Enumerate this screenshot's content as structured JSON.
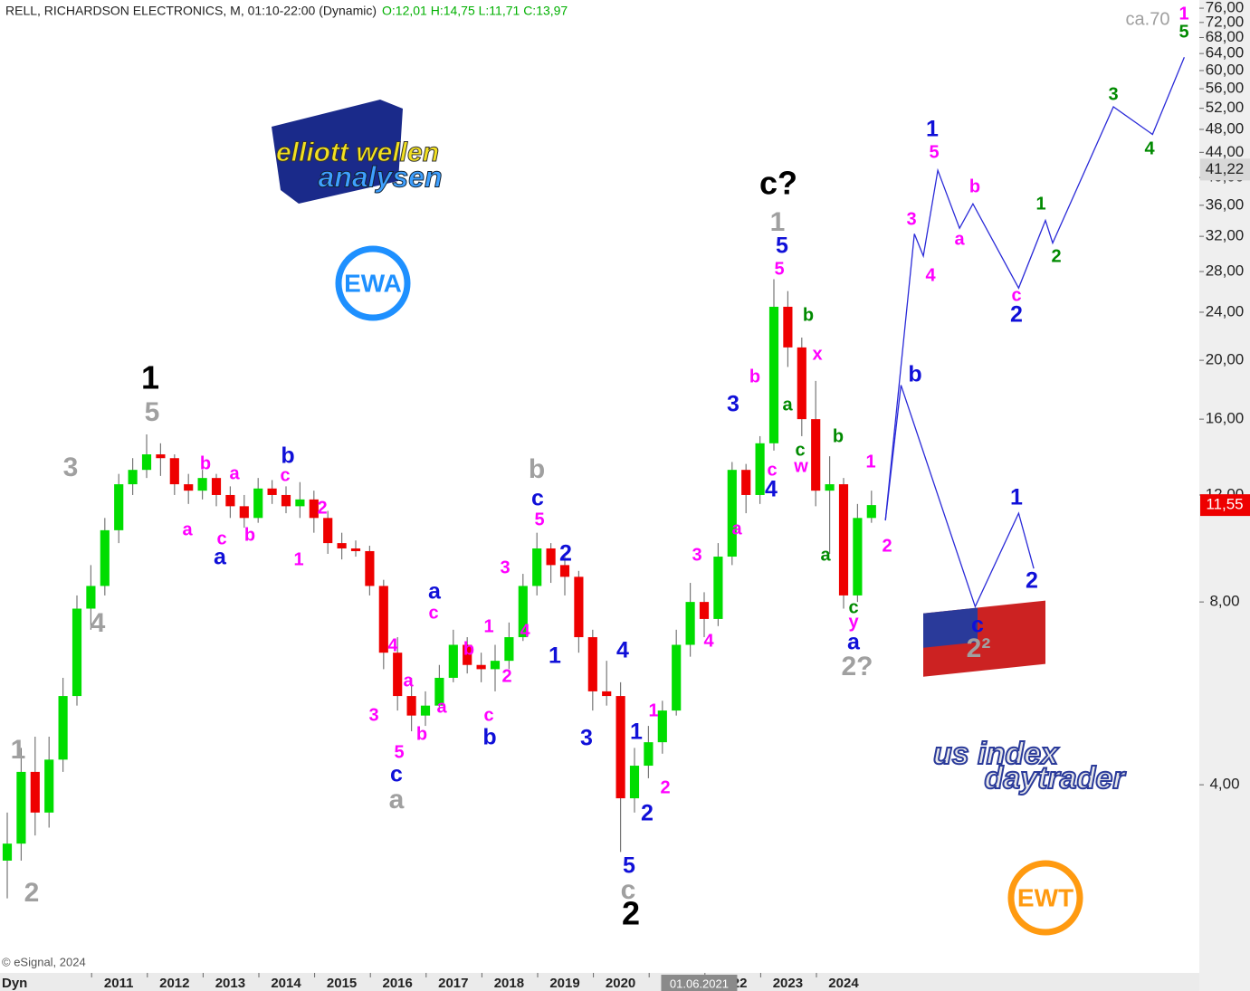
{
  "chart_data": {
    "type": "candlestick",
    "title": "RELL, RICHARDSON ELECTRONICS, M, 01:10-22:00 (Dynamic)",
    "ohlc_text": "O:12,01 H:14,75 L:11,71 C:13,97",
    "copyright": "© eSignal, 2024",
    "status": "Dyn",
    "target_text": "ca.70",
    "yscale": "log",
    "grid": false,
    "xlim": [
      2008.87,
      2030.38
    ],
    "ylim": [
      1.96,
      78.4
    ],
    "xticks": [
      2011,
      2012,
      2013,
      2014,
      2015,
      2016,
      2017,
      2018,
      2019,
      2020,
      2021,
      2022,
      2023,
      2024
    ],
    "yticks": [
      {
        "value": 4,
        "label": "4,00"
      },
      {
        "value": 8,
        "label": "8,00"
      },
      {
        "value": 12,
        "label": "12,00"
      },
      {
        "value": 16,
        "label": "16,00"
      },
      {
        "value": 20,
        "label": "20,00"
      },
      {
        "value": 24,
        "label": "24,00"
      },
      {
        "value": 28,
        "label": "28,00"
      },
      {
        "value": 32,
        "label": "32,00"
      },
      {
        "value": 36,
        "label": "36,00"
      },
      {
        "value": 40,
        "label": "40,00"
      },
      {
        "value": 44,
        "label": "44,00"
      },
      {
        "value": 48,
        "label": "48,00"
      },
      {
        "value": 52,
        "label": "52,00"
      },
      {
        "value": 56,
        "label": "56,00"
      },
      {
        "value": 60,
        "label": "60,00"
      },
      {
        "value": 64,
        "label": "64,00"
      },
      {
        "value": 68,
        "label": "68,00"
      },
      {
        "value": 72,
        "label": "72,00"
      },
      {
        "value": 76,
        "label": "76,00"
      }
    ],
    "cursor": {
      "value": 2021.41,
      "label": "01.06.2021"
    },
    "price_labels": [
      {
        "value": 41.22,
        "label": "41,22",
        "color": "#d8d8d8"
      },
      {
        "value": 11.55,
        "label": "11,55",
        "color": "#ee0000"
      }
    ],
    "up_color": "#00dd00",
    "down_color": "#ee0000",
    "x": [
      2009,
      2009.25,
      2009.5,
      2009.75,
      2010,
      2010.25,
      2010.5,
      2010.75,
      2011,
      2011.25,
      2011.5,
      2011.75,
      2012,
      2012.25,
      2012.5,
      2012.75,
      2013,
      2013.25,
      2013.5,
      2013.75,
      2014,
      2014.25,
      2014.5,
      2014.75,
      2015,
      2015.25,
      2015.5,
      2015.75,
      2016,
      2016.25,
      2016.5,
      2016.75,
      2017,
      2017.25,
      2017.5,
      2017.75,
      2018,
      2018.25,
      2018.5,
      2018.75,
      2019,
      2019.25,
      2019.5,
      2019.75,
      2020,
      2020.25,
      2020.5,
      2020.75,
      2021,
      2021.25,
      2021.5,
      2021.75,
      2022,
      2022.25,
      2022.5,
      2022.75,
      2023,
      2023.25,
      2023.5,
      2023.75,
      2024,
      2024.25,
      2024.5
    ],
    "open": [
      3.0,
      3.2,
      4.2,
      3.6,
      4.4,
      5.6,
      7.8,
      8.5,
      10.5,
      12.5,
      13.2,
      14.0,
      13.8,
      12.5,
      12.2,
      12.8,
      12.0,
      11.5,
      11.0,
      12.3,
      12.0,
      11.5,
      11.8,
      11.0,
      10.0,
      9.8,
      9.7,
      8.5,
      6.6,
      5.6,
      5.2,
      5.4,
      6.0,
      6.8,
      6.3,
      6.2,
      6.4,
      7.0,
      8.5,
      9.8,
      9.2,
      8.8,
      7.0,
      5.7,
      5.6,
      3.8,
      4.3,
      4.7,
      5.3,
      6.8,
      8.0,
      7.5,
      9.5,
      13.2,
      12.0,
      14.6,
      24.5,
      21.0,
      16.0,
      12.2,
      12.5,
      8.2,
      11.0
    ],
    "high": [
      3.6,
      4.6,
      4.8,
      4.8,
      6.0,
      8.2,
      9.2,
      11.0,
      13.0,
      13.8,
      15.1,
      14.6,
      14.0,
      13.0,
      13.2,
      13.0,
      12.4,
      12.0,
      12.8,
      12.7,
      12.4,
      12.6,
      12.2,
      11.3,
      10.4,
      10.1,
      9.9,
      8.7,
      7.0,
      6.0,
      5.7,
      6.3,
      7.2,
      7.0,
      6.6,
      6.8,
      7.4,
      8.9,
      10.4,
      10.0,
      9.5,
      9.0,
      7.2,
      6.4,
      5.9,
      4.6,
      5.0,
      5.5,
      7.2,
      8.6,
      8.3,
      10.0,
      13.6,
      13.5,
      15.0,
      27.2,
      26.0,
      21.8,
      18.5,
      13.9,
      12.8,
      11.6,
      12.2
    ],
    "low": [
      2.6,
      3.0,
      3.3,
      3.4,
      4.2,
      5.4,
      7.2,
      8.2,
      10.0,
      12.0,
      12.8,
      12.9,
      12.0,
      11.6,
      11.8,
      11.5,
      11.0,
      10.6,
      10.8,
      11.6,
      11.2,
      11.0,
      10.4,
      9.6,
      9.4,
      9.5,
      8.2,
      6.2,
      5.3,
      4.9,
      5.0,
      5.3,
      5.9,
      6.1,
      5.9,
      5.7,
      6.2,
      6.9,
      8.2,
      8.6,
      8.2,
      6.6,
      5.3,
      5.4,
      3.1,
      3.6,
      4.1,
      4.5,
      5.2,
      6.5,
      7.0,
      7.3,
      9.2,
      11.2,
      11.6,
      14.2,
      19.5,
      15.0,
      11.5,
      9.6,
      7.8,
      8.0,
      10.8
    ],
    "close": [
      3.2,
      4.2,
      3.6,
      4.4,
      5.6,
      7.8,
      8.5,
      10.5,
      12.5,
      13.2,
      14.0,
      13.8,
      12.5,
      12.2,
      12.8,
      12.0,
      11.5,
      11.0,
      12.3,
      12.0,
      11.5,
      11.8,
      11.0,
      10.0,
      9.8,
      9.7,
      8.5,
      6.6,
      5.6,
      5.2,
      5.4,
      6.0,
      6.8,
      6.3,
      6.2,
      6.4,
      7.0,
      8.5,
      9.8,
      9.2,
      8.8,
      7.0,
      5.7,
      5.6,
      3.8,
      4.3,
      4.7,
      5.3,
      6.8,
      8.0,
      7.5,
      9.5,
      13.2,
      12.0,
      14.6,
      24.5,
      21.0,
      16.0,
      12.2,
      12.5,
      8.2,
      11.0,
      11.55
    ],
    "projections": [
      {
        "color": "#2a2ad8",
        "x": [
          2024.75,
          2025.27,
          2025.43,
          2025.69,
          2026.08,
          2026.32,
          2027.14,
          2027.62,
          2027.75,
          2028.84,
          2029.54,
          2030.11
        ],
        "values": [
          10.9,
          32.3,
          29.7,
          41.1,
          33.0,
          36.2,
          26.3,
          34.0,
          31.2,
          52.3,
          47.1,
          63.1
        ]
      },
      {
        "color": "#2a2ad8",
        "x": [
          2024.75,
          2025.03,
          2026.36,
          2027.14,
          2027.41
        ],
        "values": [
          10.9,
          18.2,
          7.86,
          11.2,
          9.08
        ]
      }
    ],
    "annotations": [
      {
        "text": "1",
        "color": "#000000"
      },
      {
        "text": "c?",
        "color": "#000000"
      },
      {
        "text": "2",
        "color": "#000000"
      },
      {
        "text": "5",
        "color": "#a0a0a0"
      },
      {
        "text": "3",
        "color": "#a0a0a0"
      },
      {
        "text": "4",
        "color": "#a0a0a0"
      },
      {
        "text": "1",
        "color": "#a0a0a0"
      },
      {
        "text": "2",
        "color": "#a0a0a0"
      },
      {
        "text": "b",
        "color": "#a0a0a0"
      },
      {
        "text": "a",
        "color": "#a0a0a0"
      },
      {
        "text": "c",
        "color": "#a0a0a0"
      },
      {
        "text": "1",
        "color": "#a0a0a0"
      },
      {
        "text": "2?",
        "color": "#a0a0a0"
      },
      {
        "text": "2²",
        "color": "#a0a0a0"
      },
      {
        "text": "b",
        "color": "#1010d8"
      },
      {
        "text": "a",
        "color": "#1010d8"
      },
      {
        "text": "c",
        "color": "#1010d8"
      },
      {
        "text": "2",
        "color": "#1010d8"
      },
      {
        "text": "1",
        "color": "#1010d8"
      },
      {
        "text": "4",
        "color": "#1010d8"
      },
      {
        "text": "3",
        "color": "#1010d8"
      },
      {
        "text": "1",
        "color": "#1010d8"
      },
      {
        "text": "2",
        "color": "#1010d8"
      },
      {
        "text": "5",
        "color": "#1010d8"
      },
      {
        "text": "a",
        "color": "#1010d8"
      },
      {
        "text": "b",
        "color": "#1010d8"
      },
      {
        "text": "c",
        "color": "#1010d8"
      },
      {
        "text": "3",
        "color": "#1010d8"
      },
      {
        "text": "4",
        "color": "#1010d8"
      },
      {
        "text": "5",
        "color": "#1010d8"
      },
      {
        "text": "a",
        "color": "#1010d8"
      },
      {
        "text": "1",
        "color": "#1010d8"
      },
      {
        "text": "b",
        "color": "#1010d8"
      },
      {
        "text": "2",
        "color": "#1010d8"
      },
      {
        "text": "c",
        "color": "#1010d8"
      },
      {
        "text": "1",
        "color": "#1010d8"
      },
      {
        "text": "2",
        "color": "#1010d8"
      },
      {
        "text": "b",
        "color": "#ff00ff"
      },
      {
        "text": "a",
        "color": "#ff00ff"
      },
      {
        "text": "c",
        "color": "#ff00ff"
      },
      {
        "text": "a",
        "color": "#ff00ff"
      },
      {
        "text": "c",
        "color": "#ff00ff"
      },
      {
        "text": "b",
        "color": "#ff00ff"
      },
      {
        "text": "2",
        "color": "#ff00ff"
      },
      {
        "text": "1",
        "color": "#ff00ff"
      },
      {
        "text": "5",
        "color": "#ff00ff"
      },
      {
        "text": "3",
        "color": "#ff00ff"
      },
      {
        "text": "4",
        "color": "#ff00ff"
      },
      {
        "text": "1",
        "color": "#ff00ff"
      },
      {
        "text": "2",
        "color": "#ff00ff"
      },
      {
        "text": "4",
        "color": "#ff00ff"
      },
      {
        "text": "a",
        "color": "#ff00ff"
      },
      {
        "text": "3",
        "color": "#ff00ff"
      },
      {
        "text": "5",
        "color": "#ff00ff"
      },
      {
        "text": "b",
        "color": "#ff00ff"
      },
      {
        "text": "a",
        "color": "#ff00ff"
      },
      {
        "text": "c",
        "color": "#ff00ff"
      },
      {
        "text": "b",
        "color": "#ff00ff"
      },
      {
        "text": "c",
        "color": "#ff00ff"
      },
      {
        "text": "3",
        "color": "#ff00ff"
      },
      {
        "text": "4",
        "color": "#ff00ff"
      },
      {
        "text": "1",
        "color": "#ff00ff"
      },
      {
        "text": "2",
        "color": "#ff00ff"
      },
      {
        "text": "a",
        "color": "#ff00ff"
      },
      {
        "text": "b",
        "color": "#ff00ff"
      },
      {
        "text": "c",
        "color": "#ff00ff"
      },
      {
        "text": "5",
        "color": "#ff00ff"
      },
      {
        "text": "x",
        "color": "#ff00ff"
      },
      {
        "text": "w",
        "color": "#ff00ff"
      },
      {
        "text": "1",
        "color": "#ff00ff"
      },
      {
        "text": "2",
        "color": "#ff00ff"
      },
      {
        "text": "y",
        "color": "#ff00ff"
      },
      {
        "text": "3",
        "color": "#ff00ff"
      },
      {
        "text": "4",
        "color": "#ff00ff"
      },
      {
        "text": "5",
        "color": "#ff00ff"
      },
      {
        "text": "a",
        "color": "#ff00ff"
      },
      {
        "text": "b",
        "color": "#ff00ff"
      },
      {
        "text": "c",
        "color": "#ff00ff"
      },
      {
        "text": "1",
        "color": "#ff00ff"
      },
      {
        "text": "b",
        "color": "#008a00"
      },
      {
        "text": "a",
        "color": "#008a00"
      },
      {
        "text": "c",
        "color": "#008a00"
      },
      {
        "text": "b",
        "color": "#008a00"
      },
      {
        "text": "a",
        "color": "#008a00"
      },
      {
        "text": "c",
        "color": "#008a00"
      },
      {
        "text": "1",
        "color": "#008a00"
      },
      {
        "text": "2",
        "color": "#008a00"
      },
      {
        "text": "3",
        "color": "#008a00"
      },
      {
        "text": "4",
        "color": "#008a00"
      },
      {
        "text": "5",
        "color": "#008a00"
      }
    ],
    "logos": {
      "ewa_top": "elliott wellen",
      "ewa_bottom": "analysen",
      "ewa_badge": "EWA",
      "ewt_top": "us index",
      "ewt_bottom": "daytrader",
      "ewt_badge": "EWT"
    }
  }
}
